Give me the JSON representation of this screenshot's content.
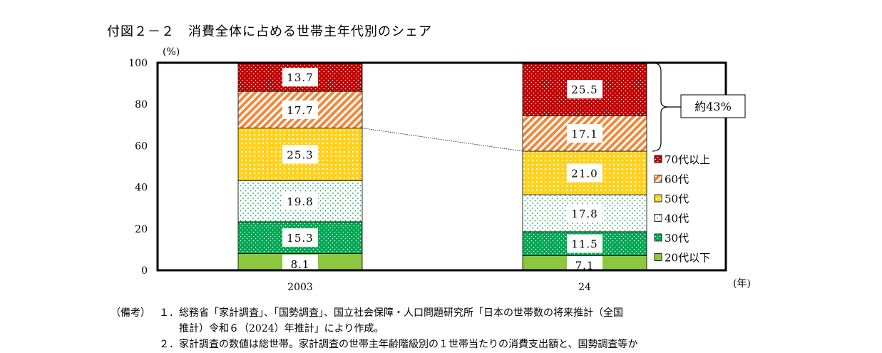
{
  "title": "付図２－２　消費全体に占める世帯主年代別のシェア",
  "chart_data": {
    "type": "bar",
    "stacked": true,
    "ylabel": "(%)",
    "xlabel": "(年)",
    "ylim": [
      0,
      100
    ],
    "yticks": [
      0,
      20,
      40,
      60,
      80,
      100
    ],
    "categories": [
      "2003",
      "24"
    ],
    "series": [
      {
        "name": "20代以下",
        "values": [
          8.1,
          7.1
        ],
        "labels": [
          "8.1",
          "7.1"
        ],
        "color": "#8dc63f",
        "pattern": "solid"
      },
      {
        "name": "30代",
        "values": [
          15.3,
          11.5
        ],
        "labels": [
          "15.3",
          "11.5"
        ],
        "color": "#00a651",
        "pattern": "dots"
      },
      {
        "name": "40代",
        "values": [
          19.8,
          17.8
        ],
        "labels": [
          "19.8",
          "17.8"
        ],
        "color": "#ffffff",
        "pattern": "green-dots"
      },
      {
        "name": "50代",
        "values": [
          25.3,
          21.0
        ],
        "labels": [
          "25.3",
          "21.0"
        ],
        "color": "#ffd21f",
        "pattern": "grid"
      },
      {
        "name": "60代",
        "values": [
          17.7,
          17.1
        ],
        "labels": [
          "17.7",
          "17.1"
        ],
        "color": "#f08a3c",
        "pattern": "diagonal"
      },
      {
        "name": "70代以上",
        "values": [
          13.7,
          25.5
        ],
        "labels": [
          "13.7",
          "25.5"
        ],
        "color": "#c00000",
        "pattern": "dots"
      }
    ],
    "legend_order": [
      "70代以上",
      "60代",
      "50代",
      "40代",
      "30代",
      "20代以下"
    ],
    "legend_position": "right",
    "annotation": "約43%",
    "grid": false
  },
  "notes": {
    "head": "（備考）",
    "items": [
      {
        "num": "１．",
        "line1": "総務省「家計調査」、「国勢調査」、国立社会保障・人口問題研究所「日本の世帯数の将来推計（全国",
        "line2": "推計）令和６（2024）年推計」により作成。"
      },
      {
        "num": "２．",
        "line1": "家計調査の数値は総世帯。家計調査の世帯主年齢階級別の１世帯当たりの消費支出額と、国勢調査等か",
        "line2": ""
      }
    ]
  }
}
